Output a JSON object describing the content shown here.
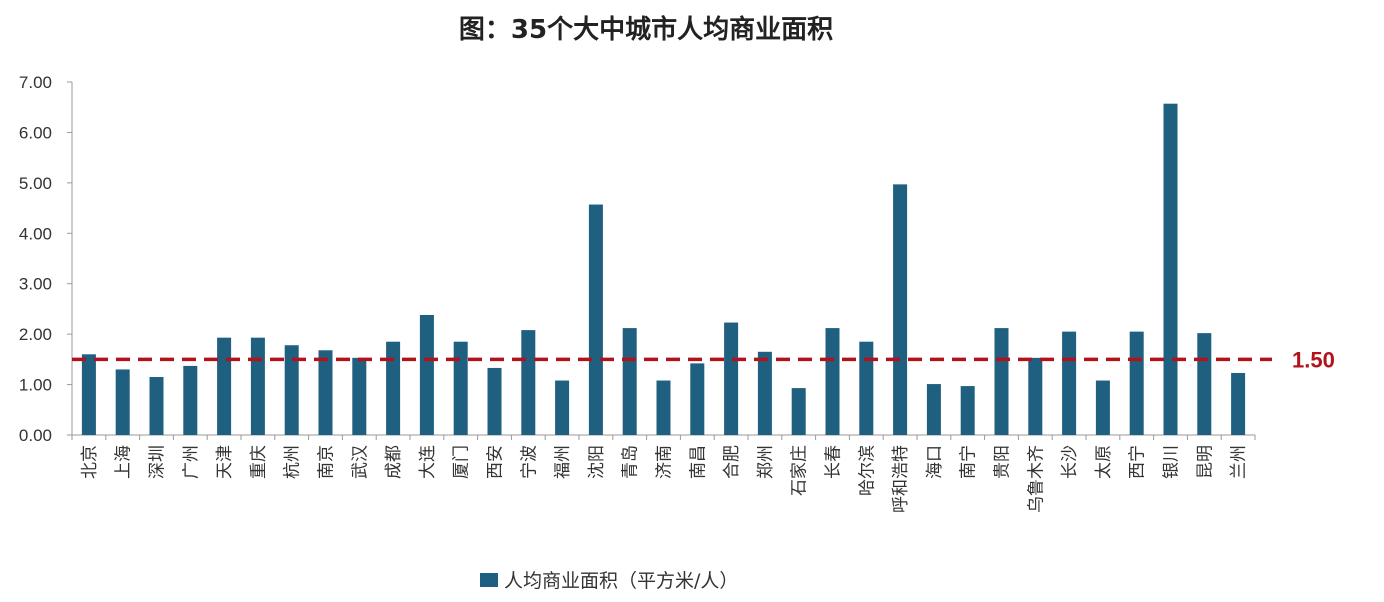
{
  "chart_data": {
    "type": "bar",
    "title": "图：35个大中城市人均商业面积",
    "categories": [
      "北京",
      "上海",
      "深圳",
      "广州",
      "天津",
      "重庆",
      "杭州",
      "南京",
      "武汉",
      "成都",
      "大连",
      "厦门",
      "西安",
      "宁波",
      "福州",
      "沈阳",
      "青岛",
      "济南",
      "南昌",
      "合肥",
      "郑州",
      "石家庄",
      "长春",
      "哈尔滨",
      "呼和浩特",
      "海口",
      "南宁",
      "贵阳",
      "乌鲁木齐",
      "长沙",
      "太原",
      "西宁",
      "银川",
      "昆明",
      "兰州"
    ],
    "series": [
      {
        "name": "人均商业面积（平方米/人）",
        "color": "#1f5f80",
        "values": [
          1.6,
          1.3,
          1.15,
          1.37,
          1.93,
          1.93,
          1.78,
          1.68,
          1.53,
          1.85,
          2.38,
          1.85,
          1.33,
          2.08,
          1.08,
          4.57,
          2.12,
          1.08,
          1.42,
          2.23,
          1.65,
          0.93,
          2.12,
          1.85,
          4.97,
          1.01,
          0.97,
          2.12,
          1.53,
          2.05,
          1.08,
          2.05,
          6.57,
          2.02,
          1.23
        ]
      }
    ],
    "ylim": [
      0,
      7
    ],
    "yticks": [
      "0.00",
      "1.00",
      "2.00",
      "3.00",
      "4.00",
      "5.00",
      "6.00",
      "7.00"
    ],
    "reference_line": {
      "value": 1.5,
      "label": "1.50",
      "color": "#b3121b",
      "style": "dashed"
    },
    "legend": {
      "position": "bottom",
      "label": "人均商业面积（平方米/人）"
    },
    "grid": false,
    "xlabel": "",
    "ylabel": ""
  }
}
